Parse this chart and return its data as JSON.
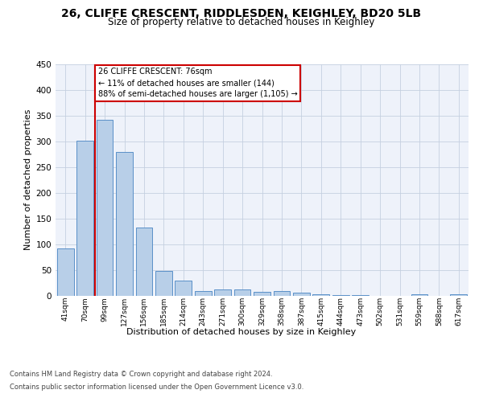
{
  "title1": "26, CLIFFE CRESCENT, RIDDLESDEN, KEIGHLEY, BD20 5LB",
  "title2": "Size of property relative to detached houses in Keighley",
  "xlabel": "Distribution of detached houses by size in Keighley",
  "ylabel": "Number of detached properties",
  "categories": [
    "41sqm",
    "70sqm",
    "99sqm",
    "127sqm",
    "156sqm",
    "185sqm",
    "214sqm",
    "243sqm",
    "271sqm",
    "300sqm",
    "329sqm",
    "358sqm",
    "387sqm",
    "415sqm",
    "444sqm",
    "473sqm",
    "502sqm",
    "531sqm",
    "559sqm",
    "588sqm",
    "617sqm"
  ],
  "values": [
    92,
    302,
    342,
    279,
    133,
    47,
    29,
    9,
    12,
    12,
    7,
    9,
    5,
    2,
    1,
    1,
    0,
    0,
    3,
    0,
    3
  ],
  "bar_color": "#b8cfe8",
  "bar_edge_color": "#5a90c8",
  "property_line_color": "#cc0000",
  "annotation_text": "26 CLIFFE CRESCENT: 76sqm\n← 11% of detached houses are smaller (144)\n88% of semi-detached houses are larger (1,105) →",
  "annotation_box_color": "#ffffff",
  "annotation_box_edge_color": "#cc0000",
  "ylim_max": 450,
  "yticks": [
    0,
    50,
    100,
    150,
    200,
    250,
    300,
    350,
    400,
    450
  ],
  "footnote_line1": "Contains HM Land Registry data © Crown copyright and database right 2024.",
  "footnote_line2": "Contains public sector information licensed under the Open Government Licence v3.0.",
  "bg_color": "#eef2fa",
  "grid_color": "#c5d0e0",
  "title1_fontsize": 10,
  "title2_fontsize": 8.5,
  "ylabel_fontsize": 8,
  "xlabel_fontsize": 8,
  "tick_fontsize": 6.5,
  "ytick_fontsize": 7.5,
  "annotation_fontsize": 7,
  "footnote_fontsize": 6
}
